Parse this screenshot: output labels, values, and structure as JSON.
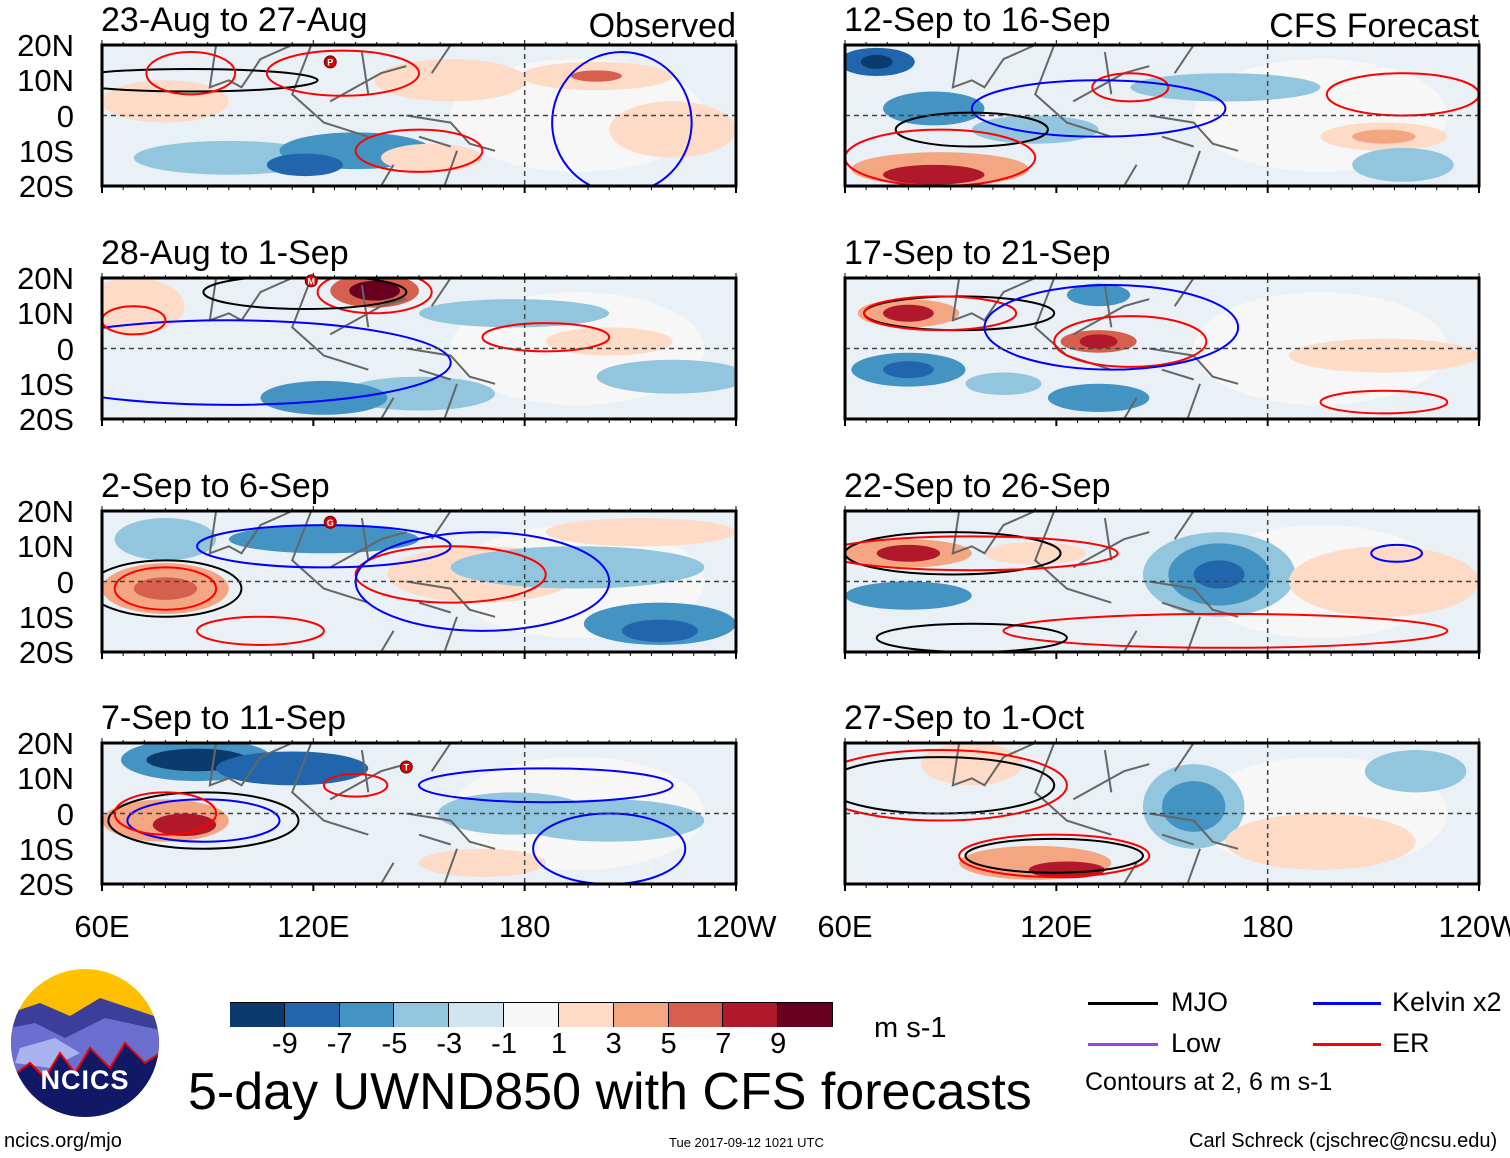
{
  "panels": [
    {
      "title": "23-Aug to 27-Aug",
      "label": "Observed",
      "storm": "P"
    },
    {
      "title": "12-Sep to 16-Sep",
      "label": "CFS Forecast",
      "storm": ""
    },
    {
      "title": "28-Aug to 1-Sep",
      "label": "",
      "storm": "M"
    },
    {
      "title": "17-Sep to 21-Sep",
      "label": "",
      "storm": ""
    },
    {
      "title": "2-Sep to 6-Sep",
      "label": "",
      "storm": "G"
    },
    {
      "title": "22-Sep to 26-Sep",
      "label": "",
      "storm": ""
    },
    {
      "title": "7-Sep to 11-Sep",
      "label": "",
      "storm": "T"
    },
    {
      "title": "27-Sep to 1-Oct",
      "label": "",
      "storm": ""
    }
  ],
  "lat_labels": [
    "20N",
    "10N",
    "0",
    "10S",
    "20S"
  ],
  "lon_labels": [
    "60E",
    "120E",
    "180",
    "120W"
  ],
  "colorbar": {
    "labels": [
      "-9",
      "-7",
      "-5",
      "-3",
      "-1",
      "1",
      "3",
      "5",
      "7",
      "9"
    ],
    "colors": [
      "#0b3a6d",
      "#2166ac",
      "#4393c3",
      "#92c5de",
      "#d1e5f0",
      "#f7f7f7",
      "#fddbc7",
      "#f4a582",
      "#d6604d",
      "#b2182b",
      "#67001f"
    ],
    "units": "m s-1"
  },
  "legend": {
    "items": [
      {
        "label": "MJO",
        "color": "#000000"
      },
      {
        "label": "Kelvin x2",
        "color": "#0000ff"
      },
      {
        "label": "Low",
        "color": "#a040e0"
      },
      {
        "label": "ER",
        "color": "#ff0000"
      }
    ],
    "contours_note": "Contours at 2, 6 m s-1"
  },
  "title": "5-day UWND850 with CFS forecasts",
  "logo_text": "NCICS",
  "footer": {
    "left": "ncics.org/mjo",
    "center": "Tue 2017-09-12 1021 UTC",
    "right": "Carl Schreck (cjschrec@ncsu.edu)"
  }
}
